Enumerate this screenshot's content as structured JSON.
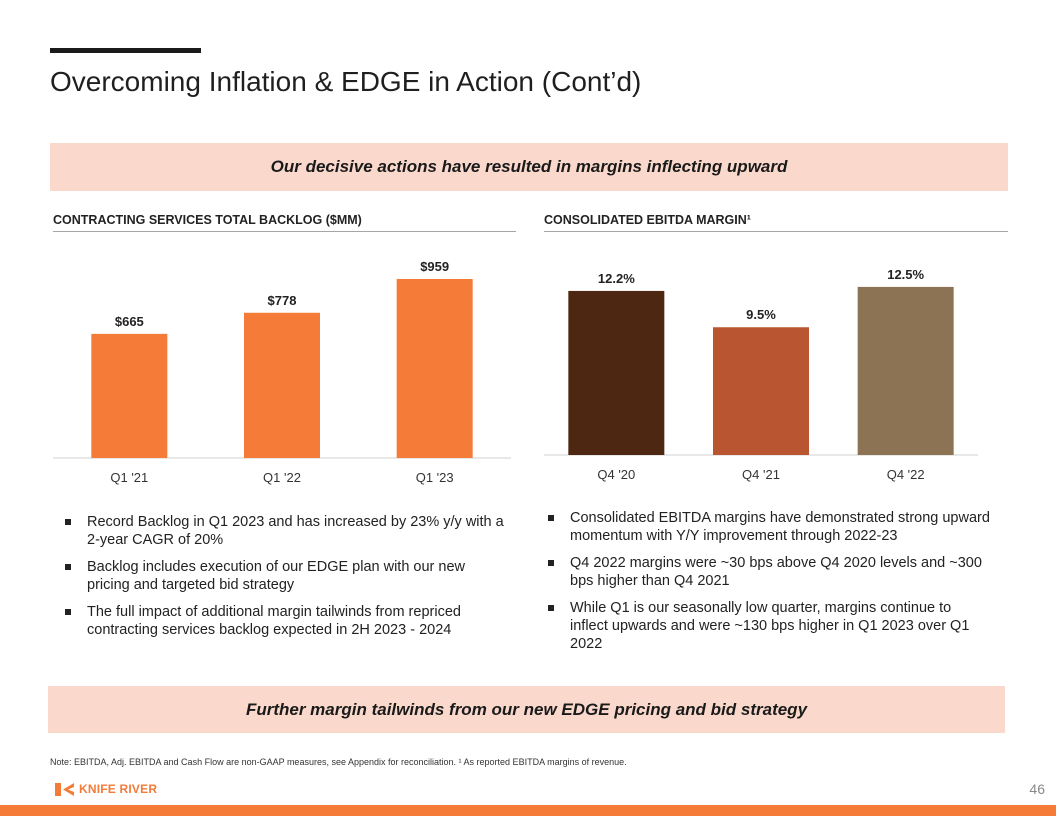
{
  "title": "Overcoming Inflation & EDGE in Action (Cont’d)",
  "banner_top": "Our decisive actions have resulted in margins inflecting upward",
  "banner_bottom": "Further margin tailwinds from our new EDGE pricing and bid strategy",
  "left_section_title": "CONTRACTING SERVICES TOTAL BACKLOG ($MM)",
  "right_section_title": "CONSOLIDATED EBITDA MARGIN¹",
  "chart_data": [
    {
      "type": "bar",
      "title": "CONTRACTING SERVICES TOTAL BACKLOG ($MM)",
      "categories": [
        "Q1 '21",
        "Q1 '22",
        "Q1 '23"
      ],
      "values": [
        665,
        778,
        959
      ],
      "labels": [
        "$665",
        "$778",
        "$959"
      ],
      "ylim": [
        0,
        1050
      ],
      "colors": [
        "#f47b38",
        "#f47b38",
        "#f47b38"
      ],
      "grid": false
    },
    {
      "type": "bar",
      "title": "CONSOLIDATED EBITDA MARGIN¹",
      "categories": [
        "Q4 '20",
        "Q4 '21",
        "Q4 '22"
      ],
      "values": [
        12.2,
        9.5,
        12.5
      ],
      "labels": [
        "12.2%",
        "9.5%",
        "12.5%"
      ],
      "ylim": [
        0,
        14.5
      ],
      "colors": [
        "#4e2712",
        "#b95531",
        "#8c7354"
      ],
      "grid": false
    }
  ],
  "left_bullets": [
    "Record Backlog in Q1 2023 and has increased by 23% y/y with a 2-year CAGR of 20%",
    "Backlog includes execution of our EDGE plan with our new pricing and targeted bid strategy",
    "The full impact of additional margin tailwinds from repriced contracting services backlog expected in 2H 2023 - 2024"
  ],
  "right_bullets": [
    "Consolidated EBITDA margins have demonstrated strong upward momentum with Y/Y improvement through 2022-23",
    "Q4 2022 margins were ~30 bps above Q4 2020 levels and ~300 bps higher than Q4 2021",
    "While Q1 is our seasonally low quarter, margins continue to inflect upwards and were ~130 bps higher in Q1 2023 over Q1 2022"
  ],
  "footnote": "Note: EBITDA, Adj. EBITDA and Cash Flow are non-GAAP measures, see Appendix for reconciliation. ¹ As reported EBITDA margins of revenue.",
  "logo_text": "KNIFE RIVER",
  "page_number": "46",
  "colors": {
    "accent": "#f47b38",
    "banner_bg": "#fad9cc"
  }
}
